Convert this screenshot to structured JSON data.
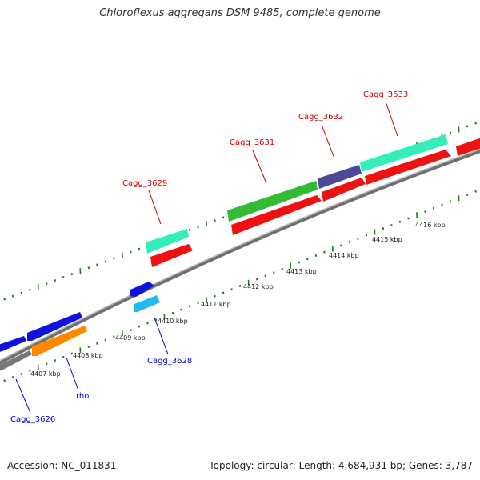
{
  "header": {
    "title": "Chloroflexus aggregans DSM 9485, complete genome"
  },
  "footer": {
    "accession": "Accession: NC_011831",
    "summary": "Topology: circular; Length: 4,684,931 bp; Genes: 3,787"
  },
  "colors": {
    "backbone": "#999999",
    "tick": "#1f7a1f",
    "red": "#ee1111",
    "green": "#33bb33",
    "aqua": "#33eebb",
    "slate": "#4a4a99",
    "blue": "#1111dd",
    "cyan": "#22bbee",
    "orange": "#ff8800",
    "gray": "#888888",
    "red_label": "#cc0000",
    "blue_label": "#0000cc"
  },
  "ruler": {
    "labels": [
      "4407 kbp",
      "4408 kbp",
      "4409 kbp",
      "4410 kbp",
      "4411 kbp",
      "4412 kbp",
      "4413 kbp",
      "4414 kbp",
      "4415 kbp",
      "4416 kbp"
    ]
  },
  "genes": {
    "cagg_3626": "Cagg_3626",
    "rho": "rho",
    "cagg_3628": "Cagg_3628",
    "cagg_3629": "Cagg_3629",
    "cagg_3631": "Cagg_3631",
    "cagg_3632": "Cagg_3632",
    "cagg_3633": "Cagg_3633"
  }
}
